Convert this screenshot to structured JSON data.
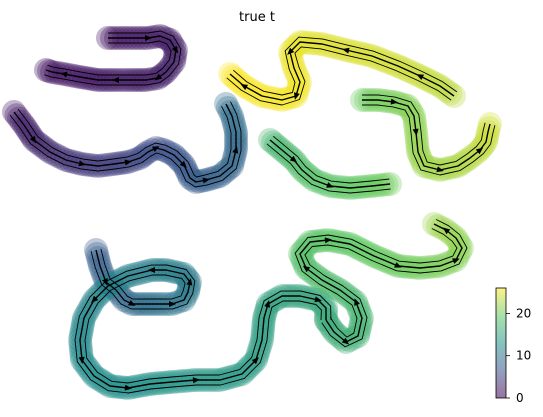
{
  "chart_data": {
    "type": "scatter",
    "title": "true t",
    "xlabel": "",
    "ylabel": "",
    "colormap": "viridis",
    "colorbar": {
      "range": [
        0,
        26
      ],
      "ticks": [
        0,
        10,
        20
      ],
      "tick_labels": [
        "0",
        "10",
        "20"
      ]
    },
    "streamlines": true,
    "series": [
      {
        "x": [
          108,
          128,
          148,
          160,
          170,
          176,
          174,
          166,
          158,
          146,
          132,
          116,
          98,
          80,
          64,
          52,
          46
        ],
        "y": [
          38,
          38,
          38,
          36,
          40,
          50,
          62,
          72,
          78,
          80,
          80,
          80,
          80,
          77,
          74,
          72,
          70
        ],
        "t": [
          1.4,
          1.6,
          1.8,
          2.0,
          2.1,
          2.2,
          2.3,
          2.3,
          2.2,
          2.1,
          2.0,
          1.9,
          1.8,
          1.7,
          1.6,
          1.5,
          1.4
        ]
      },
      {
        "x": [
          14,
          24,
          34,
          50,
          66,
          82,
          98,
          114,
          128,
          140,
          148,
          156,
          164,
          174,
          184,
          190,
          196,
          206,
          220,
          232,
          236,
          236,
          232,
          226
        ],
        "y": [
          112,
          125,
          140,
          152,
          160,
          164,
          166,
          164,
          162,
          158,
          152,
          148,
          150,
          155,
          165,
          178,
          182,
          180,
          176,
          166,
          150,
          132,
          116,
          104
        ],
        "t": [
          2.0,
          2.4,
          2.8,
          3.2,
          3.6,
          4.0,
          4.4,
          4.8,
          5.2,
          5.5,
          5.8,
          6.0,
          6.3,
          6.6,
          6.9,
          7.2,
          7.5,
          7.8,
          8.1,
          8.4,
          8.7,
          9.0,
          9.2,
          9.4
        ]
      },
      {
        "x": [
          96,
          100,
          106,
          116,
          124,
          132,
          146,
          160,
          172,
          184,
          188,
          190,
          184,
          166,
          152,
          128,
          108,
          94,
          84,
          80,
          82,
          94,
          110,
          128,
          150,
          172,
          196,
          220,
          242,
          256,
          262,
          264,
          268,
          282,
          300,
          318,
          326,
          326
        ],
        "y": [
          250,
          266,
          282,
          290,
          300,
          304,
          304,
          304,
          304,
          300,
          292,
          282,
          274,
          270,
          270,
          276,
          286,
          300,
          318,
          340,
          360,
          376,
          386,
          388,
          384,
          382,
          380,
          380,
          374,
          360,
          340,
          318,
          304,
          296,
          296,
          300,
          308,
          320
        ],
        "t": [
          7.5,
          7.8,
          8.1,
          8.4,
          8.7,
          9.0,
          9.3,
          9.6,
          9.9,
          10.2,
          10.4,
          10.6,
          10.8,
          11.0,
          11.2,
          11.4,
          11.6,
          11.8,
          12.0,
          12.2,
          12.4,
          12.6,
          12.8,
          13.0,
          13.2,
          13.4,
          13.6,
          13.8,
          14.0,
          14.2,
          14.4,
          14.6,
          14.8,
          15.0,
          15.2,
          15.4,
          15.6,
          15.8
        ]
      },
      {
        "x": [
          326,
          334,
          346,
          358,
          362,
          356,
          340,
          322,
          306,
          300,
          310,
          328,
          350,
          374,
          398,
          420,
          440,
          456,
          462,
          456,
          446,
          434
        ],
        "y": [
          320,
          332,
          342,
          336,
          318,
          302,
          290,
          280,
          268,
          254,
          242,
          240,
          244,
          256,
          266,
          268,
          266,
          260,
          248,
          238,
          230,
          224
        ],
        "t": [
          15.8,
          16.1,
          16.4,
          16.7,
          17.0,
          17.3,
          17.6,
          17.9,
          18.2,
          18.5,
          18.8,
          19.1,
          19.4,
          19.7,
          20.0,
          20.3,
          20.6,
          20.9,
          21.2,
          21.5,
          21.8,
          22.0
        ]
      },
      {
        "x": [
          270,
          282,
          294,
          302,
          314,
          330,
          350,
          372,
          390
        ],
        "y": [
          140,
          150,
          160,
          170,
          180,
          186,
          188,
          186,
          184
        ],
        "t": [
          17.0,
          17.4,
          17.8,
          18.2,
          18.6,
          19.0,
          19.4,
          19.8,
          20.2
        ]
      },
      {
        "x": [
          362,
          378,
          394,
          408,
          414,
          416,
          418,
          424,
          440,
          458,
          470,
          480,
          486,
          488,
          490
        ],
        "y": [
          100,
          100,
          102,
          106,
          116,
          132,
          152,
          166,
          170,
          166,
          158,
          150,
          142,
          132,
          124
        ],
        "t": [
          20.0,
          20.3,
          20.6,
          20.9,
          21.2,
          21.5,
          21.8,
          22.1,
          22.4,
          22.7,
          23.0,
          23.3,
          23.6,
          23.9,
          24.2
        ]
      },
      {
        "x": [
          454,
          440,
          420,
          398,
          372,
          346,
          322,
          300,
          290,
          294,
          300,
          296,
          282,
          262,
          244,
          230
        ],
        "y": [
          96,
          86,
          76,
          66,
          56,
          50,
          44,
          42,
          52,
          68,
          82,
          96,
          100,
          96,
          86,
          74
        ],
        "t": [
          23.2,
          23.5,
          23.8,
          24.1,
          24.4,
          24.6,
          24.8,
          25.0,
          25.2,
          25.4,
          25.5,
          25.6,
          25.7,
          25.8,
          25.9,
          26.0
        ]
      }
    ]
  }
}
